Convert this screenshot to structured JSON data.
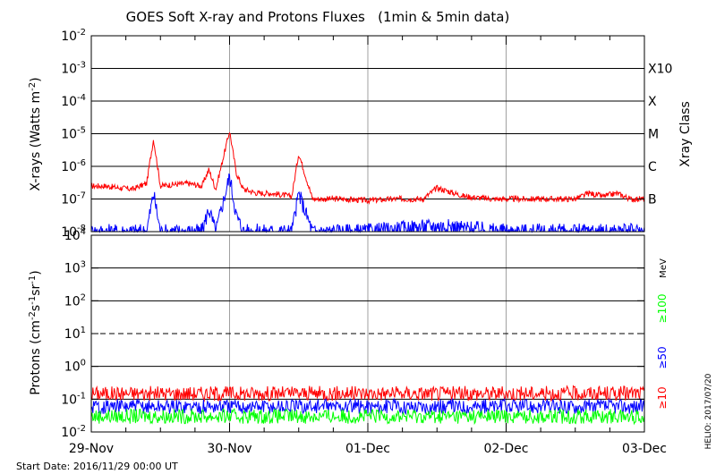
{
  "title": "GOES Soft X-ray and Protons Fluxes   (1min & 5min data)",
  "start_date": "Start Date: 2016/11/29 00:00 UT",
  "credit": "HELIO: 2017/07/20",
  "colors": {
    "red": "#ff0000",
    "blue": "#0000ff",
    "green": "#00ff00",
    "grid": "#a0a0a0"
  },
  "chart_data": [
    {
      "type": "line",
      "ylabel": "X-rays (Watts m^-2)",
      "yscale": "log",
      "ylim": [
        1e-08,
        0.01
      ],
      "xlim": [
        "2016-11-29 00:00",
        "2016-12-03 00:00"
      ],
      "y_ticks": [
        {
          "base": "10",
          "exp": "-8"
        },
        {
          "base": "10",
          "exp": "-7"
        },
        {
          "base": "10",
          "exp": "-6"
        },
        {
          "base": "10",
          "exp": "-5"
        },
        {
          "base": "10",
          "exp": "-4"
        },
        {
          "base": "10",
          "exp": "-3"
        },
        {
          "base": "10",
          "exp": "-2"
        }
      ],
      "right_axis_label": "Xray Class",
      "class_labels": [
        {
          "label": "B",
          "value": 1e-07
        },
        {
          "label": "C",
          "value": 1e-06
        },
        {
          "label": "M",
          "value": 1e-05
        },
        {
          "label": "X",
          "value": 0.0001
        },
        {
          "label": "X10",
          "value": 0.001
        }
      ],
      "series": [
        {
          "color": "red",
          "x_days": [
            0,
            0.1,
            0.2,
            0.3,
            0.4,
            0.45,
            0.5,
            0.6,
            0.7,
            0.8,
            0.85,
            0.9,
            1.0,
            1.05,
            1.1,
            1.2,
            1.3,
            1.45,
            1.5,
            1.6,
            1.8,
            2.0,
            2.2,
            2.4,
            2.5,
            2.7,
            2.9,
            3.0,
            3.2,
            3.5,
            3.6,
            3.7,
            3.8,
            3.9,
            4.0
          ],
          "y": [
            2.5e-07,
            2.5e-07,
            2.2e-07,
            2e-07,
            3e-07,
            7e-06,
            2.5e-07,
            2.8e-07,
            3e-07,
            2.5e-07,
            8e-07,
            2e-07,
            1.2e-05,
            6e-07,
            2e-07,
            1.5e-07,
            1.5e-07,
            1.2e-07,
            2.5e-06,
            1e-07,
            1e-07,
            9e-08,
            1e-07,
            1e-07,
            2.2e-07,
            1.2e-07,
            1e-07,
            1e-07,
            1e-07,
            1e-07,
            1.5e-07,
            1.2e-07,
            1.5e-07,
            1e-07,
            1e-07
          ]
        },
        {
          "color": "blue",
          "x_days": [
            0,
            0.1,
            0.2,
            0.3,
            0.4,
            0.45,
            0.5,
            0.6,
            0.7,
            0.8,
            0.85,
            0.9,
            1.0,
            1.05,
            1.1,
            1.2,
            1.3,
            1.45,
            1.5,
            1.6,
            2.0,
            2.5,
            3.0,
            4.0
          ],
          "y": [
            1e-08,
            1e-08,
            1e-08,
            1e-08,
            1e-08,
            1.5e-07,
            1e-08,
            1e-08,
            1e-08,
            1e-08,
            5e-08,
            1e-08,
            5e-07,
            3e-08,
            1e-08,
            1e-08,
            1e-08,
            1e-08,
            1.5e-07,
            1e-08,
            1e-08,
            1.5e-08,
            1e-08,
            1e-08
          ]
        }
      ]
    },
    {
      "type": "line",
      "ylabel": "Protons (cm^-2 s^-1 sr^-1)",
      "yscale": "log",
      "ylim": [
        0.01,
        10000
      ],
      "y_ticks": [
        {
          "base": "10",
          "exp": "-2"
        },
        {
          "base": "10",
          "exp": "-1"
        },
        {
          "base": "10",
          "exp": "0"
        },
        {
          "base": "10",
          "exp": "1"
        },
        {
          "base": "10",
          "exp": "2"
        },
        {
          "base": "10",
          "exp": "3"
        },
        {
          "base": "10",
          "exp": "4"
        }
      ],
      "y_tick_plain": [
        "10⁻²",
        "0.1",
        "1.0",
        "10",
        "10²",
        "10³",
        "10⁴"
      ],
      "threshold_value": 10,
      "unit_label": "MeV",
      "series": [
        {
          "name": "≥10",
          "color": "red",
          "level": 0.15
        },
        {
          "name": "≥50",
          "color": "blue",
          "level": 0.06
        },
        {
          "name": "≥100",
          "color": "green",
          "level": 0.03
        }
      ],
      "x_tick_labels": [
        "29-Nov",
        "30-Nov",
        "01-Dec",
        "02-Dec",
        "03-Dec"
      ]
    }
  ]
}
